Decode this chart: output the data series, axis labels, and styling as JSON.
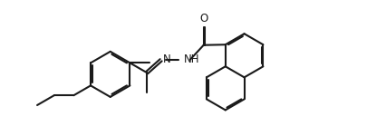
{
  "background_color": "#ffffff",
  "line_color": "#1a1a1a",
  "lw": 1.5,
  "dlw": 1.5,
  "figsize": [
    4.26,
    1.5
  ],
  "dpi": 100,
  "label_N": "N",
  "label_NH": "NH",
  "label_O": "O",
  "ring_r": 0.28,
  "nap_r": 0.26
}
